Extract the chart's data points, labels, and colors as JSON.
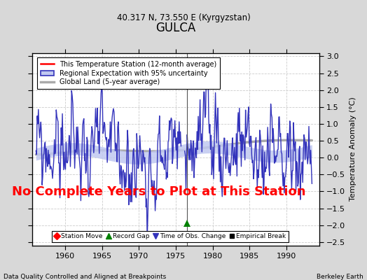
{
  "title": "GULCA",
  "subtitle": "40.317 N, 73.550 E (Kyrgyzstan)",
  "xlabel_bottom": "Data Quality Controlled and Aligned at Breakpoints",
  "xlabel_right": "Berkeley Earth",
  "ylabel": "Temperature Anomaly (°C)",
  "xlim": [
    1955.5,
    1994.5
  ],
  "ylim": [
    -2.6,
    3.1
  ],
  "yticks": [
    -2.5,
    -2,
    -1.5,
    -1,
    -0.5,
    0,
    0.5,
    1,
    1.5,
    2,
    2.5,
    3
  ],
  "xticks": [
    1960,
    1965,
    1970,
    1975,
    1980,
    1985,
    1990
  ],
  "no_data_text": "No Complete Years to Plot at This Station",
  "no_data_color": "red",
  "no_data_fontsize": 13,
  "regional_color": "#3333bb",
  "regional_fill_color": "#c0c8f0",
  "global_color": "#aaaaaa",
  "plot_bg_color": "#ffffff",
  "fig_bg_color": "#d8d8d8",
  "legend_items": [
    {
      "label": "This Temperature Station (12-month average)",
      "color": "red",
      "lw": 1.5
    },
    {
      "label": "Regional Expectation with 95% uncertainty",
      "color": "#3333bb",
      "fill": "#c0c8f0"
    },
    {
      "label": "Global Land (5-year average)",
      "color": "#aaaaaa",
      "lw": 2.5
    }
  ],
  "marker_items": [
    {
      "label": "Station Move",
      "color": "red",
      "marker": "D",
      "markersize": 5
    },
    {
      "label": "Record Gap",
      "color": "green",
      "marker": "^",
      "markersize": 6
    },
    {
      "label": "Time of Obs. Change",
      "color": "#3333bb",
      "marker": "v",
      "markersize": 6
    },
    {
      "label": "Empirical Break",
      "color": "black",
      "marker": "s",
      "markersize": 5
    }
  ],
  "record_gap_x": 1976.5,
  "record_gap_y": -1.95,
  "gap_line_x": 1976.5
}
